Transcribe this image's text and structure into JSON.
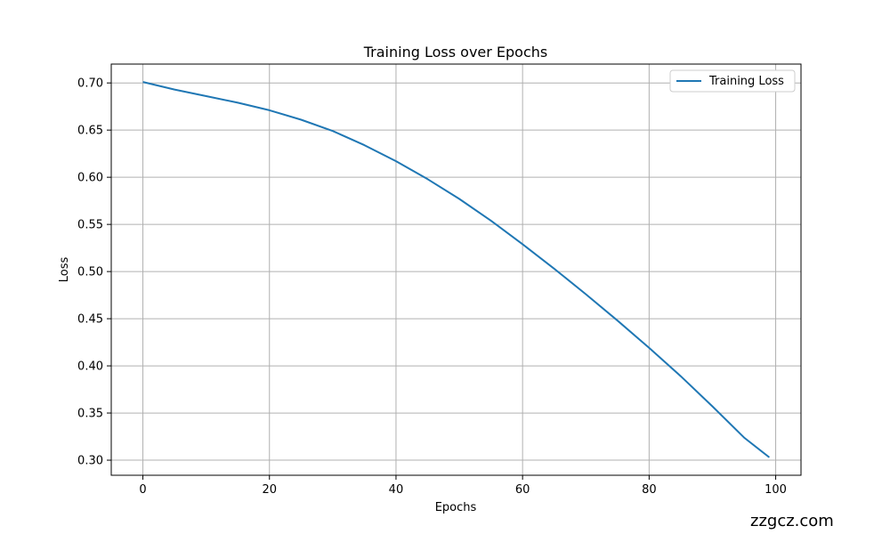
{
  "chart_data": {
    "type": "line",
    "title": "Training Loss over Epochs",
    "xlabel": "Epochs",
    "ylabel": "Loss",
    "xlim": [
      -5,
      104
    ],
    "ylim": [
      0.284,
      0.72
    ],
    "xticks": [
      0,
      20,
      40,
      60,
      80,
      100
    ],
    "yticks": [
      0.3,
      0.35,
      0.4,
      0.45,
      0.5,
      0.55,
      0.6,
      0.65,
      0.7
    ],
    "grid": true,
    "legend_position": "top-right",
    "series": [
      {
        "name": "Training Loss",
        "color": "#1f77b4",
        "x": [
          0,
          5,
          10,
          15,
          20,
          25,
          30,
          35,
          40,
          45,
          50,
          55,
          60,
          65,
          70,
          75,
          80,
          85,
          90,
          95,
          99
        ],
        "y": [
          0.701,
          0.693,
          0.686,
          0.679,
          0.671,
          0.661,
          0.649,
          0.634,
          0.617,
          0.598,
          0.577,
          0.554,
          0.529,
          0.503,
          0.476,
          0.448,
          0.419,
          0.389,
          0.357,
          0.324,
          0.303
        ]
      }
    ]
  },
  "watermark": "zzgcz.com"
}
